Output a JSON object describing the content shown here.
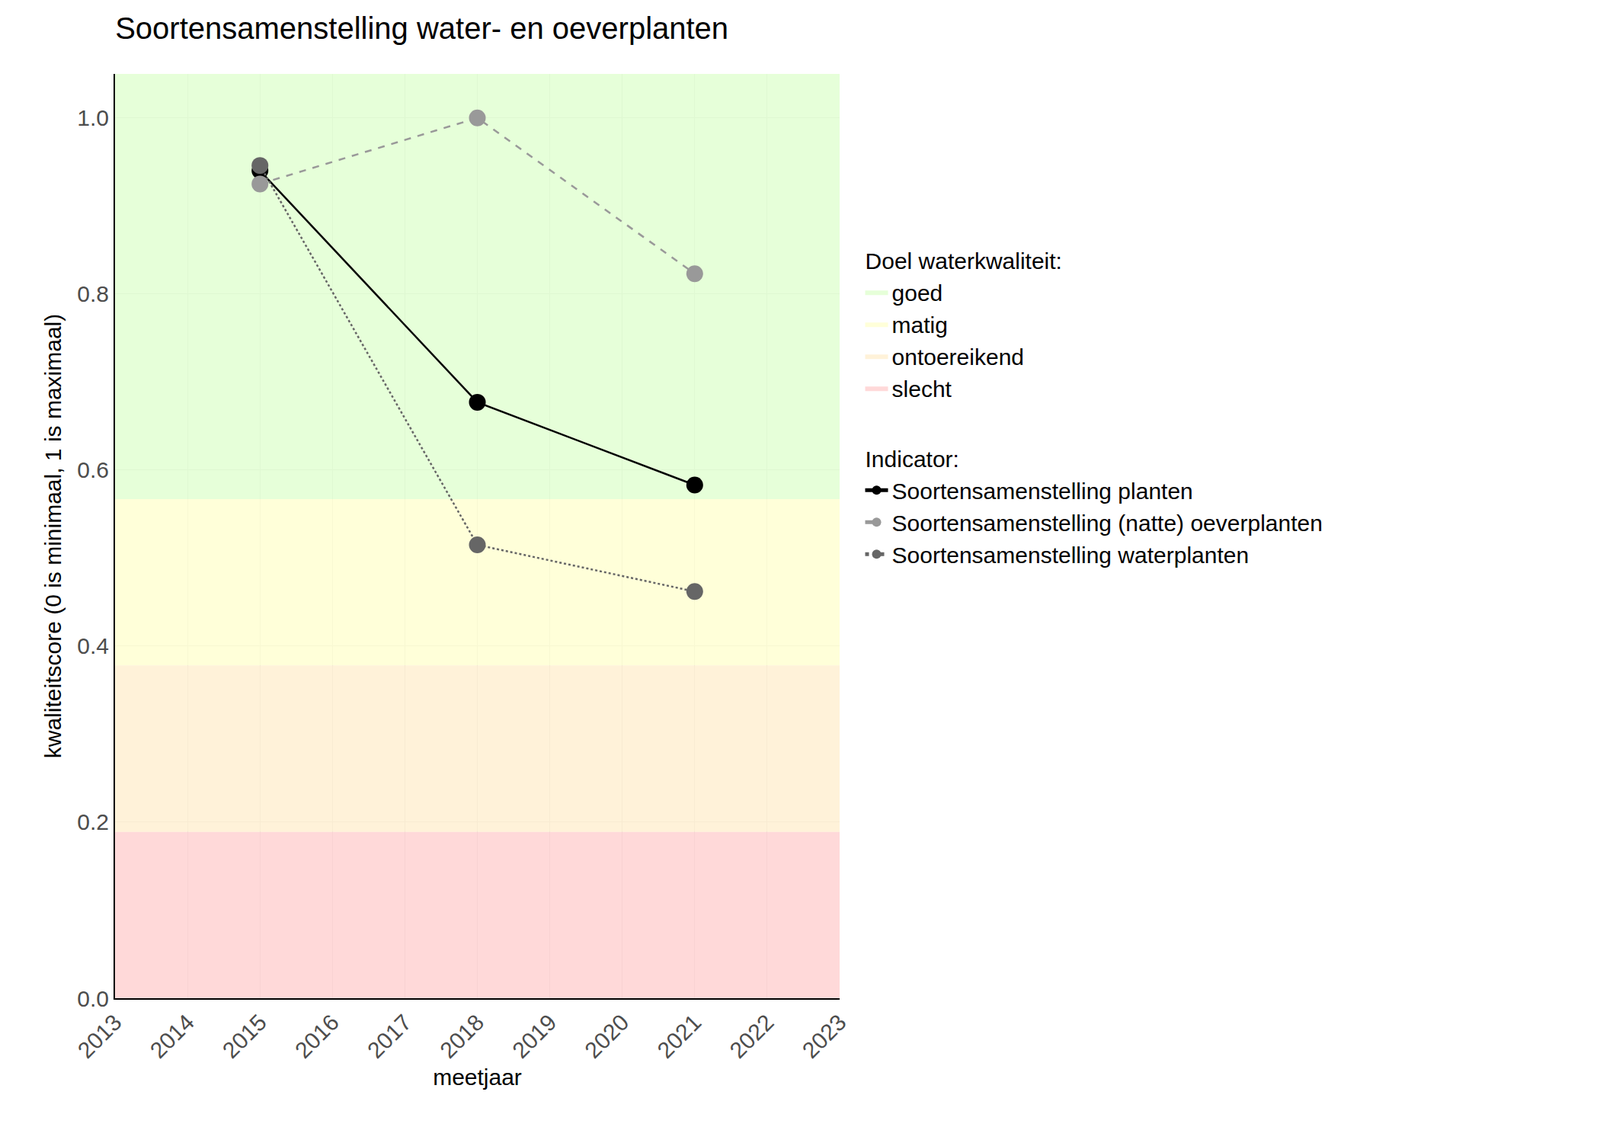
{
  "chart_data": {
    "type": "line",
    "title": "Soortensamenstelling water- en oeverplanten",
    "x_label": "meetjaar",
    "y_label": "kwaliteitscore (0 is minimaal, 1 is maximaal)",
    "x": [
      2015,
      2018,
      2021
    ],
    "series": [
      {
        "name": "Soortensamenstelling planten",
        "color": "#000000",
        "line_style": "solid",
        "marker": "circle",
        "values": [
          0.94,
          0.677,
          0.583
        ]
      },
      {
        "name": "Soortensamenstelling (natte) oeverplanten",
        "color": "#999999",
        "line_style": "dash",
        "marker": "circle",
        "values": [
          0.925,
          1.0,
          0.823
        ]
      },
      {
        "name": "Soortensamenstelling waterplanten",
        "color": "#666666",
        "line_style": "dot",
        "marker": "circle",
        "values": [
          0.946,
          0.515,
          0.462
        ]
      }
    ],
    "series_title": "Indicator:",
    "band_title": "Doel waterkwaliteit:",
    "bands": [
      {
        "name": "goed",
        "color": "rgba(224,255,208,0.8)",
        "from": 0.567,
        "to": 1.05
      },
      {
        "name": "matig",
        "color": "rgba(255,255,208,0.8)",
        "from": 0.378,
        "to": 0.567
      },
      {
        "name": "ontoereikend",
        "color": "rgba(255,239,208,0.8)",
        "from": 0.189,
        "to": 0.378
      },
      {
        "name": "slecht",
        "color": "rgba(255,208,208,0.8)",
        "from": 0,
        "to": 0.189
      }
    ],
    "xlim": [
      2013,
      2023
    ],
    "xticks": [
      2013,
      2014,
      2015,
      2016,
      2017,
      2018,
      2019,
      2020,
      2021,
      2022,
      2023
    ],
    "ylim": [
      0,
      1.05
    ],
    "yticks": [
      {
        "value": 0,
        "label": "0.0"
      },
      {
        "value": 0.2,
        "label": "0.2"
      },
      {
        "value": 0.4,
        "label": "0.4"
      },
      {
        "value": 0.6,
        "label": "0.6"
      },
      {
        "value": 0.8,
        "label": "0.8"
      },
      {
        "value": 1.0,
        "label": "1.0"
      }
    ],
    "grid": true,
    "legend": "right"
  }
}
